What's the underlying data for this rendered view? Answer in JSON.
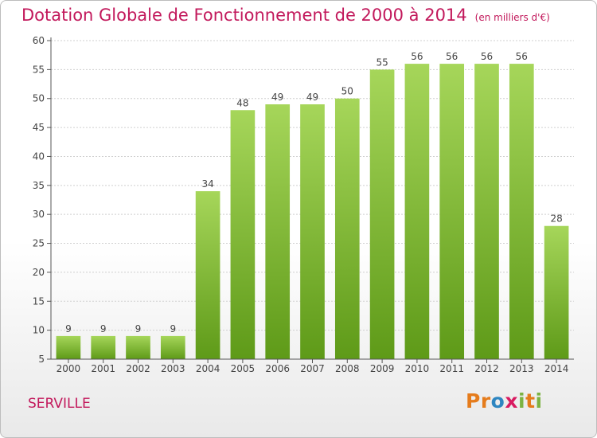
{
  "header": {
    "title": "Dotation Globale de Fonctionnement de 2000 à 2014",
    "subtitle": "(en milliers d'€)"
  },
  "footer": {
    "commune": "SERVILLE",
    "logo_text": "Proxiti"
  },
  "colors": {
    "title": "#c2185b",
    "bar_top": "#a6d65a",
    "bar_bottom": "#5e9a18",
    "grid": "#cfcfcf"
  },
  "chart_data": {
    "type": "bar",
    "title": "Dotation Globale de Fonctionnement de 2000 à 2014",
    "subtitle": "(en milliers d'€)",
    "categories": [
      "2000",
      "2001",
      "2002",
      "2003",
      "2004",
      "2005",
      "2006",
      "2007",
      "2008",
      "2009",
      "2010",
      "2011",
      "2012",
      "2013",
      "2014"
    ],
    "values": [
      9,
      9,
      9,
      9,
      34,
      48,
      49,
      49,
      50,
      55,
      56,
      56,
      56,
      56,
      28
    ],
    "ylim": [
      5,
      60
    ],
    "yticks": [
      5,
      10,
      15,
      20,
      25,
      30,
      35,
      40,
      45,
      50,
      55,
      60
    ],
    "grid": true,
    "data_labels": true
  }
}
